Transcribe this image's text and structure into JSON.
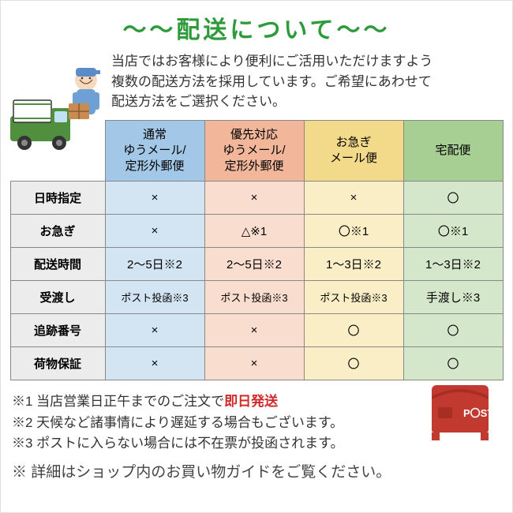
{
  "colors": {
    "title": "#2e9b3a",
    "col1_head": "#a3c7e6",
    "col1_body": "#d3e4f2",
    "col2_head": "#f2b79a",
    "col2_body": "#f9ddcf",
    "col3_head": "#f3d98a",
    "col3_body": "#faeec6",
    "col4_head": "#a8cf93",
    "col4_body": "#d5e7ca",
    "accent_red": "#d02a2a",
    "mailbox": "#c23a2f"
  },
  "title": "～～配送について～～",
  "intro_lines": [
    "当店ではお客様により便利にご活用いただけますよう",
    "複数の配送方法を採用しています。ご希望にあわせて",
    "配送方法をご選択ください。"
  ],
  "columns": [
    {
      "lines": [
        "通常",
        "ゆうメール/",
        "定形外郵便"
      ]
    },
    {
      "lines": [
        "優先対応",
        "ゆうメール/",
        "定形外郵便"
      ]
    },
    {
      "lines": [
        "お急ぎ",
        "メール便"
      ]
    },
    {
      "lines": [
        "宅配便"
      ]
    }
  ],
  "rows": [
    {
      "label": "日時指定",
      "cells": [
        "×",
        "×",
        "×",
        "〇"
      ]
    },
    {
      "label": "お急ぎ",
      "cells": [
        "×",
        "△※1",
        "〇※1",
        "〇※1"
      ]
    },
    {
      "label": "配送時間",
      "cells": [
        "2～5日※2",
        "2～5日※2",
        "1～3日※2",
        "1～3日※2"
      ]
    },
    {
      "label": "受渡し",
      "cells": [
        "ポスト投函※3",
        "ポスト投函※3",
        "ポスト投函※3",
        "手渡し※3"
      ]
    },
    {
      "label": "追跡番号",
      "cells": [
        "×",
        "×",
        "〇",
        "〇"
      ]
    },
    {
      "label": "荷物保証",
      "cells": [
        "×",
        "×",
        "〇",
        "〇"
      ]
    }
  ],
  "notes": [
    {
      "pre": "※1 当店営業日正午までのご注文で",
      "accent": "即日発送",
      "post": ""
    },
    {
      "pre": "※2 天候など諸事情により遅延する場合もございます。",
      "accent": "",
      "post": ""
    },
    {
      "pre": "※3 ポストに入らない場合には不在票が投函されます。",
      "accent": "",
      "post": ""
    }
  ],
  "final_note": "※ 詳細はショップ内のお買い物ガイドをご覧ください。"
}
